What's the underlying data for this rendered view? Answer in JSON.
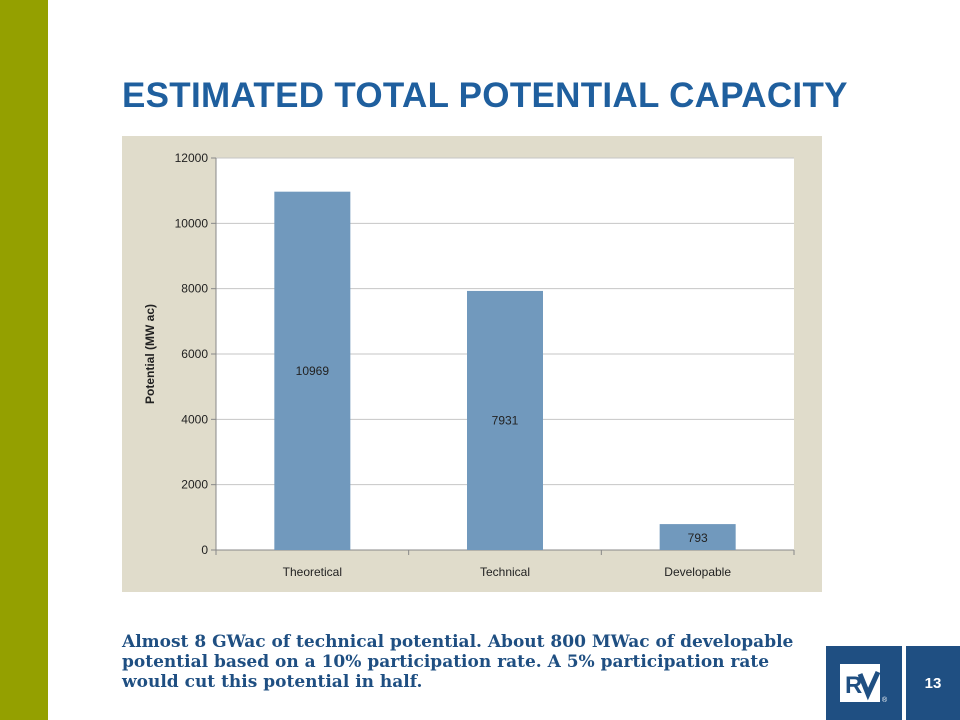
{
  "slide": {
    "title": "ESTIMATED TOTAL POTENTIAL CAPACITY",
    "caption": "Almost 8 GWac of technical potential.  About 800 MWac of developable  potential based on a 10% participation rate.  A 5% participation rate would cut this potential in half.",
    "page_number": "13",
    "logo": "RV-logo",
    "colors": {
      "sidebar": "#94a000",
      "title": "#1f5f9e",
      "footer": "#1f4f82",
      "bar": "#7199bd",
      "chart_bg": "#e0dccb"
    }
  },
  "chart_data": {
    "type": "bar",
    "categories": [
      "Theoretical",
      "Technical",
      "Developable"
    ],
    "values": [
      10969,
      7931,
      793
    ],
    "data_labels": [
      "10969",
      "7931",
      "793"
    ],
    "ylabel": "Potential (MW ac)",
    "xlabel": "",
    "ylim": [
      0,
      12000
    ],
    "yticks": [
      0,
      2000,
      4000,
      6000,
      8000,
      10000,
      12000
    ],
    "grid": true,
    "legend": "none"
  }
}
